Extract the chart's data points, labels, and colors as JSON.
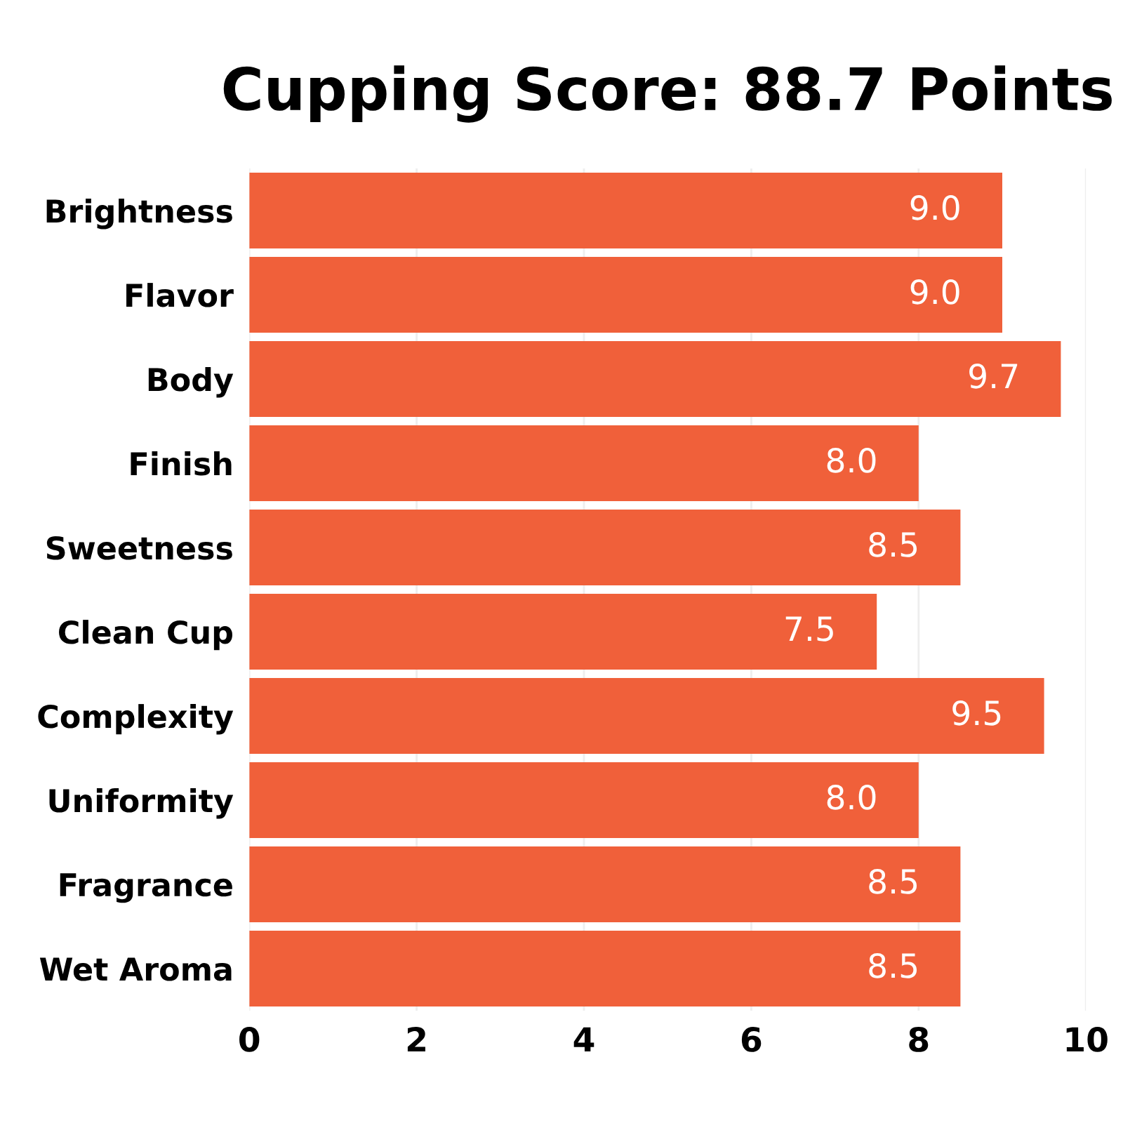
{
  "chart_data": {
    "type": "bar",
    "orientation": "horizontal",
    "title": "Cupping Score: 88.7 Points",
    "categories": [
      "Brightness",
      "Flavor",
      "Body",
      "Finish",
      "Sweetness",
      "Clean Cup",
      "Complexity",
      "Uniformity",
      "Fragrance",
      "Wet Aroma"
    ],
    "values": [
      9.0,
      9.0,
      9.7,
      8.0,
      8.5,
      7.5,
      9.5,
      8.0,
      8.5,
      8.5
    ],
    "color": "#f0603a",
    "xlim": [
      0,
      10
    ],
    "value_labels": [
      "9.0",
      "9.0",
      "9.7",
      "8.0",
      "8.5",
      "7.5",
      "9.5",
      "8.0",
      "8.5",
      "8.5"
    ],
    "xticks": [
      0,
      2,
      4,
      6,
      8,
      10
    ],
    "grid": "x"
  }
}
